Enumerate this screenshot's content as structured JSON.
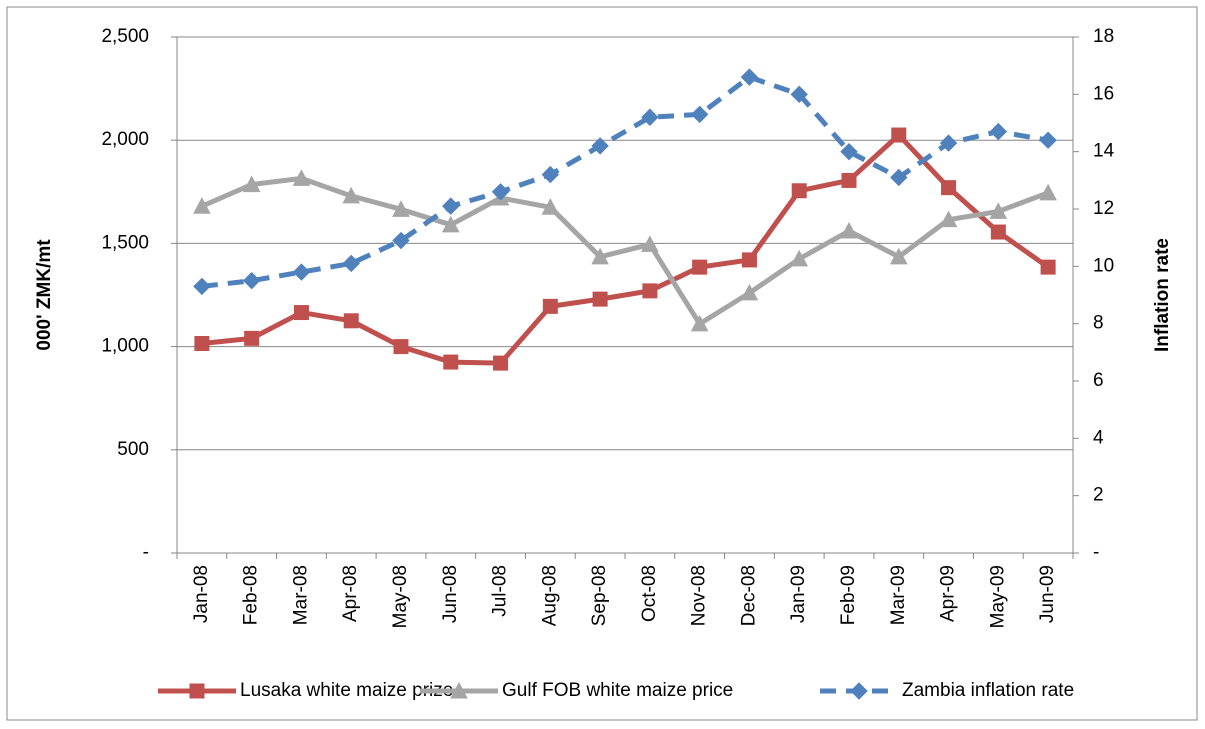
{
  "chart_data": {
    "type": "line",
    "y_label": "000' ZMK/mt",
    "y2_label": "Inflation rate",
    "categories": [
      "Jan-08",
      "Feb-08",
      "Mar-08",
      "Apr-08",
      "May-08",
      "Jun-08",
      "Jul-08",
      "Aug-08",
      "Sep-08",
      "Oct-08",
      "Nov-08",
      "Dec-08",
      "Jan-09",
      "Feb-09",
      "Mar-09",
      "Apr-09",
      "May-09",
      "Jun-09"
    ],
    "series": [
      {
        "name": "Lusaka white maize prize",
        "color": "#c0504d",
        "marker": "square",
        "dashed": false,
        "values": [
          1015,
          1040,
          1165,
          1125,
          1000,
          925,
          920,
          1195,
          1230,
          1270,
          1385,
          1420,
          1755,
          1805,
          2025,
          1770,
          1555,
          1385
        ]
      },
      {
        "name": "Gulf FOB white maize price",
        "color": "#a5a5a5",
        "marker": "triangle",
        "dashed": false,
        "values": [
          1680,
          1785,
          1815,
          1730,
          1665,
          1590,
          1720,
          1675,
          1435,
          1495,
          1110,
          1260,
          1425,
          1560,
          1435,
          1615,
          1655,
          1745
        ]
      },
      {
        "name": "Zambia inflation rate",
        "color": "#4f81bd",
        "marker": "diamond",
        "dashed": true,
        "axis": "y2",
        "values": [
          9.3,
          9.5,
          9.8,
          10.1,
          10.9,
          12.1,
          12.6,
          13.2,
          14.2,
          15.2,
          15.3,
          16.6,
          16.0,
          14.0,
          13.1,
          14.3,
          14.7,
          14.4
        ]
      }
    ],
    "ylim": [
      0,
      2500
    ],
    "yticks": [
      {
        "value": 0,
        "label": "-"
      },
      500,
      {
        "value": 1000,
        "label": "1,000"
      },
      {
        "value": 1500,
        "label": "1,500"
      },
      {
        "value": 2000,
        "label": "2,000"
      },
      {
        "value": 2500,
        "label": "2,500"
      }
    ],
    "y2lim": [
      0,
      18
    ],
    "y2ticks": [
      {
        "value": 0,
        "label": "-"
      },
      2,
      4,
      6,
      8,
      10,
      12,
      14,
      16,
      18
    ],
    "grid": true,
    "legend": "bottom"
  }
}
